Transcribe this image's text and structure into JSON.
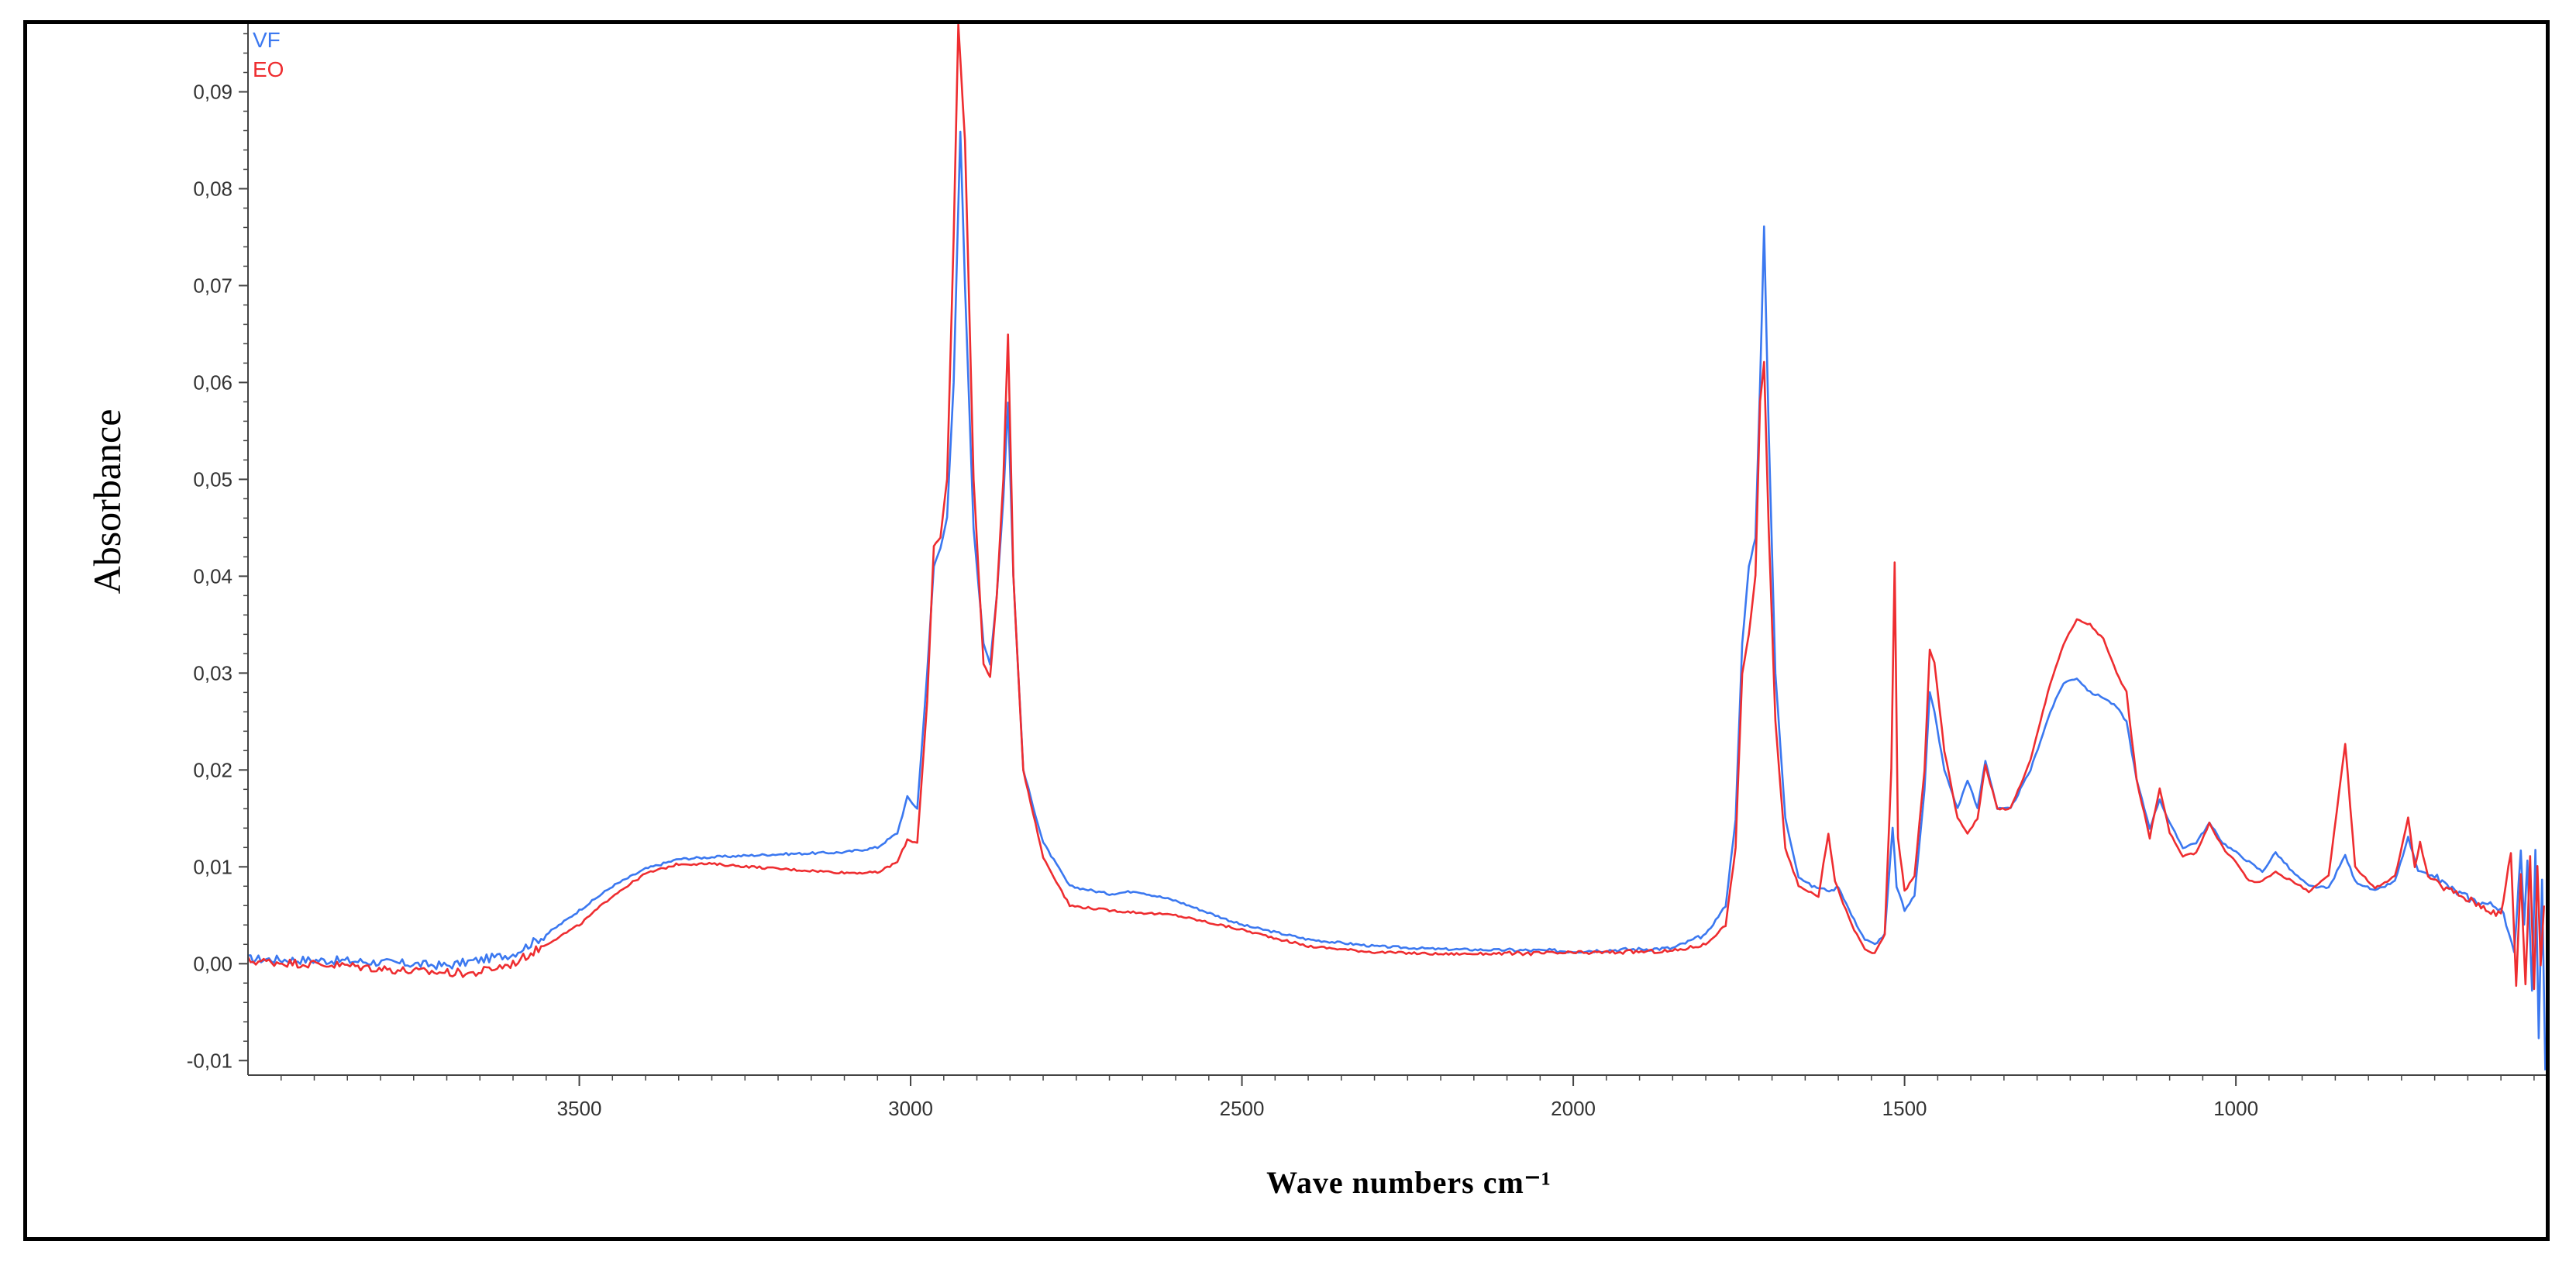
{
  "chart_data": {
    "type": "line",
    "title": "",
    "xlabel": "Wave numbers cm⁻¹",
    "ylabel": "Absorbance",
    "xlim": [
      4000,
      530
    ],
    "ylim": [
      -0.0115,
      0.097
    ],
    "x_ticks": [
      3500,
      3000,
      2500,
      2000,
      1500,
      1000
    ],
    "x_tick_labels": [
      "3500",
      "3000",
      "2500",
      "2000",
      "1500",
      "1000"
    ],
    "y_ticks": [
      -0.01,
      0.0,
      0.01,
      0.02,
      0.03,
      0.04,
      0.05,
      0.06,
      0.07,
      0.08,
      0.09
    ],
    "y_tick_labels": [
      "-0,01",
      "0,00",
      "0,01",
      "0,02",
      "0,03",
      "0,04",
      "0,05",
      "0,06",
      "0,07",
      "0,08",
      "0,09"
    ],
    "legend_position": "top-left",
    "series": [
      {
        "name": "VF",
        "color": "#3b78f0",
        "points": [
          [
            4000,
            0.0005
          ],
          [
            3850,
            0.0003
          ],
          [
            3700,
            -0.0002
          ],
          [
            3600,
            0.001
          ],
          [
            3550,
            0.003
          ],
          [
            3500,
            0.0055
          ],
          [
            3450,
            0.008
          ],
          [
            3400,
            0.0098
          ],
          [
            3350,
            0.0108
          ],
          [
            3300,
            0.011
          ],
          [
            3200,
            0.0113
          ],
          [
            3100,
            0.0115
          ],
          [
            3050,
            0.012
          ],
          [
            3020,
            0.0135
          ],
          [
            3005,
            0.0172
          ],
          [
            2990,
            0.016
          ],
          [
            2975,
            0.03
          ],
          [
            2965,
            0.041
          ],
          [
            2955,
            0.043
          ],
          [
            2945,
            0.046
          ],
          [
            2935,
            0.06
          ],
          [
            2925,
            0.086
          ],
          [
            2918,
            0.07
          ],
          [
            2905,
            0.045
          ],
          [
            2890,
            0.033
          ],
          [
            2880,
            0.031
          ],
          [
            2870,
            0.038
          ],
          [
            2860,
            0.048
          ],
          [
            2853,
            0.058
          ],
          [
            2845,
            0.04
          ],
          [
            2830,
            0.02
          ],
          [
            2800,
            0.0125
          ],
          [
            2760,
            0.008
          ],
          [
            2700,
            0.0072
          ],
          [
            2660,
            0.0075
          ],
          [
            2600,
            0.0065
          ],
          [
            2500,
            0.004
          ],
          [
            2400,
            0.0025
          ],
          [
            2300,
            0.0018
          ],
          [
            2200,
            0.0015
          ],
          [
            2000,
            0.0013
          ],
          [
            1850,
            0.0016
          ],
          [
            1800,
            0.003
          ],
          [
            1770,
            0.006
          ],
          [
            1755,
            0.015
          ],
          [
            1745,
            0.033
          ],
          [
            1735,
            0.041
          ],
          [
            1725,
            0.044
          ],
          [
            1718,
            0.06
          ],
          [
            1712,
            0.076
          ],
          [
            1705,
            0.055
          ],
          [
            1695,
            0.03
          ],
          [
            1680,
            0.015
          ],
          [
            1660,
            0.009
          ],
          [
            1640,
            0.008
          ],
          [
            1610,
            0.0075
          ],
          [
            1600,
            0.008
          ],
          [
            1580,
            0.005
          ],
          [
            1560,
            0.0025
          ],
          [
            1545,
            0.002
          ],
          [
            1530,
            0.003
          ],
          [
            1518,
            0.014
          ],
          [
            1512,
            0.008
          ],
          [
            1500,
            0.0055
          ],
          [
            1485,
            0.007
          ],
          [
            1470,
            0.018
          ],
          [
            1462,
            0.028
          ],
          [
            1455,
            0.026
          ],
          [
            1440,
            0.02
          ],
          [
            1420,
            0.016
          ],
          [
            1405,
            0.019
          ],
          [
            1390,
            0.016
          ],
          [
            1378,
            0.021
          ],
          [
            1360,
            0.016
          ],
          [
            1340,
            0.016
          ],
          [
            1310,
            0.02
          ],
          [
            1280,
            0.026
          ],
          [
            1260,
            0.029
          ],
          [
            1240,
            0.0295
          ],
          [
            1220,
            0.028
          ],
          [
            1200,
            0.0275
          ],
          [
            1180,
            0.0265
          ],
          [
            1165,
            0.025
          ],
          [
            1150,
            0.019
          ],
          [
            1130,
            0.014
          ],
          [
            1115,
            0.017
          ],
          [
            1100,
            0.0145
          ],
          [
            1080,
            0.012
          ],
          [
            1060,
            0.0125
          ],
          [
            1040,
            0.0145
          ],
          [
            1020,
            0.0125
          ],
          [
            1000,
            0.0115
          ],
          [
            980,
            0.0105
          ],
          [
            960,
            0.0095
          ],
          [
            940,
            0.0115
          ],
          [
            915,
            0.0095
          ],
          [
            890,
            0.008
          ],
          [
            860,
            0.0078
          ],
          [
            835,
            0.0112
          ],
          [
            820,
            0.0085
          ],
          [
            790,
            0.0075
          ],
          [
            760,
            0.0085
          ],
          [
            740,
            0.013
          ],
          [
            725,
            0.0095
          ],
          [
            700,
            0.009
          ],
          [
            670,
            0.0075
          ],
          [
            640,
            0.0065
          ],
          [
            600,
            0.0058
          ],
          [
            580,
            0.001
          ],
          [
            570,
            0.012
          ],
          [
            565,
            0.004
          ],
          [
            560,
            0.011
          ],
          [
            553,
            -0.003
          ],
          [
            548,
            0.012
          ],
          [
            543,
            -0.008
          ],
          [
            538,
            0.009
          ],
          [
            533,
            -0.011
          ]
        ]
      },
      {
        "name": "EO",
        "color": "#ee2d30",
        "points": [
          [
            4000,
            0.0003
          ],
          [
            3850,
            -0.0002
          ],
          [
            3750,
            -0.0008
          ],
          [
            3660,
            -0.001
          ],
          [
            3600,
            0.0
          ],
          [
            3550,
            0.002
          ],
          [
            3500,
            0.004
          ],
          [
            3450,
            0.007
          ],
          [
            3400,
            0.0093
          ],
          [
            3350,
            0.0103
          ],
          [
            3300,
            0.0103
          ],
          [
            3200,
            0.0098
          ],
          [
            3100,
            0.0094
          ],
          [
            3050,
            0.0094
          ],
          [
            3020,
            0.0105
          ],
          [
            3005,
            0.0128
          ],
          [
            2990,
            0.0125
          ],
          [
            2975,
            0.027
          ],
          [
            2965,
            0.043
          ],
          [
            2955,
            0.044
          ],
          [
            2945,
            0.05
          ],
          [
            2935,
            0.075
          ],
          [
            2928,
            0.097
          ],
          [
            2918,
            0.085
          ],
          [
            2905,
            0.05
          ],
          [
            2890,
            0.031
          ],
          [
            2880,
            0.0295
          ],
          [
            2870,
            0.038
          ],
          [
            2860,
            0.05
          ],
          [
            2853,
            0.065
          ],
          [
            2845,
            0.04
          ],
          [
            2830,
            0.02
          ],
          [
            2800,
            0.011
          ],
          [
            2760,
            0.006
          ],
          [
            2700,
            0.0055
          ],
          [
            2600,
            0.005
          ],
          [
            2500,
            0.0035
          ],
          [
            2400,
            0.0018
          ],
          [
            2300,
            0.0012
          ],
          [
            2200,
            0.001
          ],
          [
            2000,
            0.0011
          ],
          [
            1850,
            0.0013
          ],
          [
            1800,
            0.002
          ],
          [
            1770,
            0.004
          ],
          [
            1755,
            0.012
          ],
          [
            1745,
            0.03
          ],
          [
            1735,
            0.034
          ],
          [
            1725,
            0.04
          ],
          [
            1718,
            0.058
          ],
          [
            1712,
            0.062
          ],
          [
            1705,
            0.045
          ],
          [
            1695,
            0.025
          ],
          [
            1680,
            0.012
          ],
          [
            1660,
            0.008
          ],
          [
            1630,
            0.007
          ],
          [
            1615,
            0.0135
          ],
          [
            1605,
            0.0085
          ],
          [
            1580,
            0.004
          ],
          [
            1560,
            0.0015
          ],
          [
            1545,
            0.001
          ],
          [
            1530,
            0.003
          ],
          [
            1520,
            0.02
          ],
          [
            1515,
            0.0415
          ],
          [
            1510,
            0.013
          ],
          [
            1500,
            0.0075
          ],
          [
            1485,
            0.009
          ],
          [
            1470,
            0.02
          ],
          [
            1462,
            0.0325
          ],
          [
            1455,
            0.031
          ],
          [
            1440,
            0.022
          ],
          [
            1420,
            0.015
          ],
          [
            1405,
            0.0135
          ],
          [
            1390,
            0.015
          ],
          [
            1378,
            0.0205
          ],
          [
            1360,
            0.016
          ],
          [
            1340,
            0.016
          ],
          [
            1310,
            0.021
          ],
          [
            1280,
            0.029
          ],
          [
            1260,
            0.033
          ],
          [
            1240,
            0.0355
          ],
          [
            1220,
            0.035
          ],
          [
            1200,
            0.0335
          ],
          [
            1180,
            0.03
          ],
          [
            1165,
            0.028
          ],
          [
            1150,
            0.019
          ],
          [
            1130,
            0.013
          ],
          [
            1115,
            0.0182
          ],
          [
            1100,
            0.0135
          ],
          [
            1080,
            0.011
          ],
          [
            1060,
            0.0115
          ],
          [
            1040,
            0.0145
          ],
          [
            1020,
            0.012
          ],
          [
            1000,
            0.0105
          ],
          [
            980,
            0.0085
          ],
          [
            960,
            0.0085
          ],
          [
            940,
            0.0095
          ],
          [
            915,
            0.0085
          ],
          [
            890,
            0.0075
          ],
          [
            860,
            0.009
          ],
          [
            835,
            0.0228
          ],
          [
            820,
            0.01
          ],
          [
            790,
            0.0078
          ],
          [
            760,
            0.009
          ],
          [
            740,
            0.015
          ],
          [
            730,
            0.01
          ],
          [
            722,
            0.0125
          ],
          [
            710,
            0.009
          ],
          [
            690,
            0.008
          ],
          [
            660,
            0.007
          ],
          [
            630,
            0.006
          ],
          [
            600,
            0.005
          ],
          [
            585,
            0.0115
          ],
          [
            577,
            -0.002
          ],
          [
            570,
            0.009
          ],
          [
            563,
            -0.002
          ],
          [
            556,
            0.011
          ],
          [
            550,
            -0.0025
          ],
          [
            545,
            0.01
          ],
          [
            540,
            0.0
          ],
          [
            535,
            0.006
          ]
        ]
      }
    ]
  }
}
